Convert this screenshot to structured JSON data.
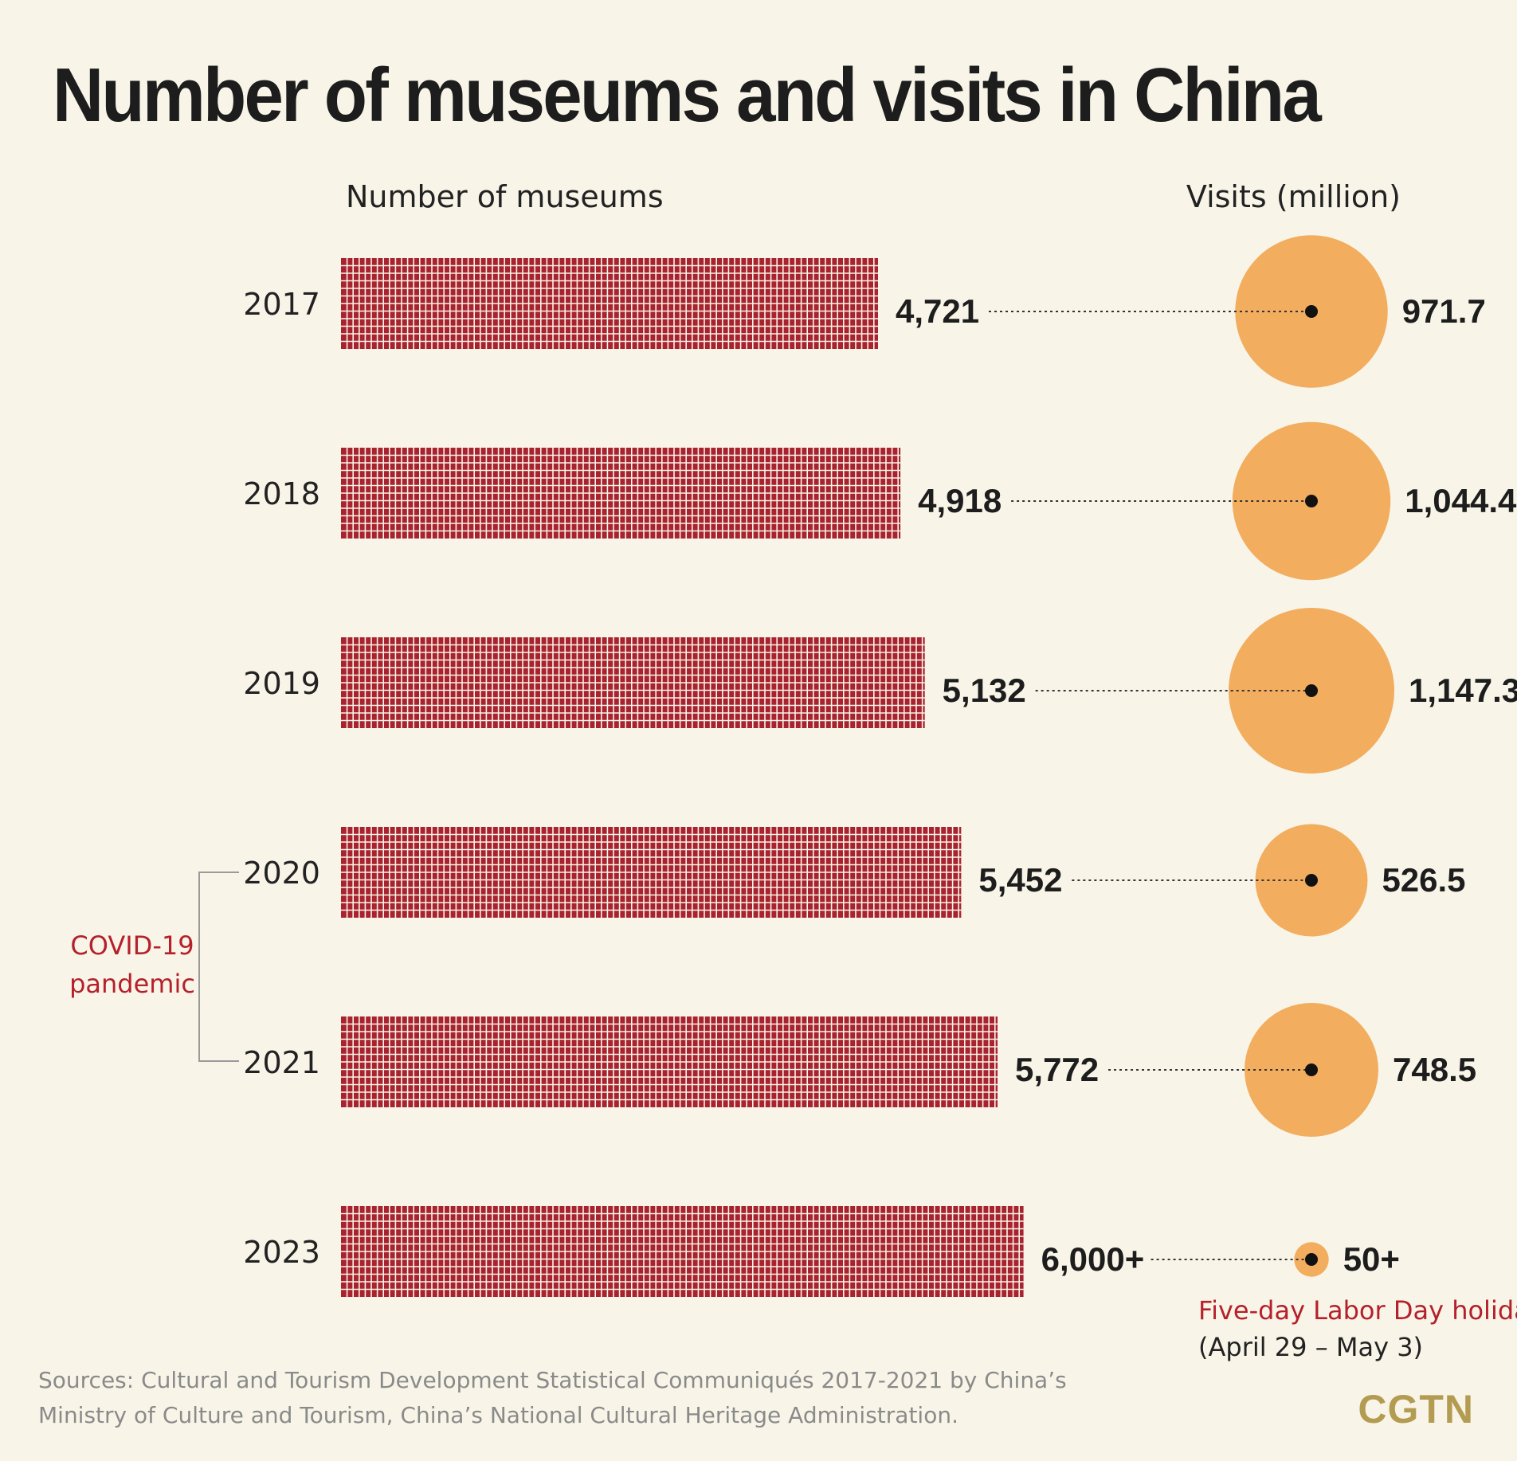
{
  "title": "Number of museums and visits in China",
  "chart_data": {
    "type": "bar",
    "left_header": "Number of museums",
    "right_header": "Visits (million)",
    "categories": [
      "2017",
      "2018",
      "2019",
      "2020",
      "2021",
      "2023"
    ],
    "museum_labels": [
      "4,721",
      "4,918",
      "5,132",
      "5,452",
      "5,772",
      "6,000+"
    ],
    "museums": [
      4721,
      4918,
      5132,
      5452,
      5772,
      6000
    ],
    "visit_labels": [
      "971.7",
      "1,044.4",
      "1,147.3",
      "526.5",
      "748.5",
      "50+"
    ],
    "visits": [
      971.7,
      1044.4,
      1147.3,
      526.5,
      748.5,
      50
    ],
    "bar_color": "#a8232f",
    "bubble_color": "#f2ad5e"
  },
  "annotation": {
    "covid_line1": "COVID-19",
    "covid_line2": "pandemic",
    "holiday_line1": "Five-day Labor Day holiday",
    "holiday_line2": "(April 29 – May 3)"
  },
  "footer": {
    "source_line1": "Sources: Cultural and Tourism Development Statistical Communiqués 2017-2021 by China’s",
    "source_line2": "Ministry of Culture and Tourism, China’s National Cultural Heritage Administration.",
    "brand": "CGTN"
  }
}
